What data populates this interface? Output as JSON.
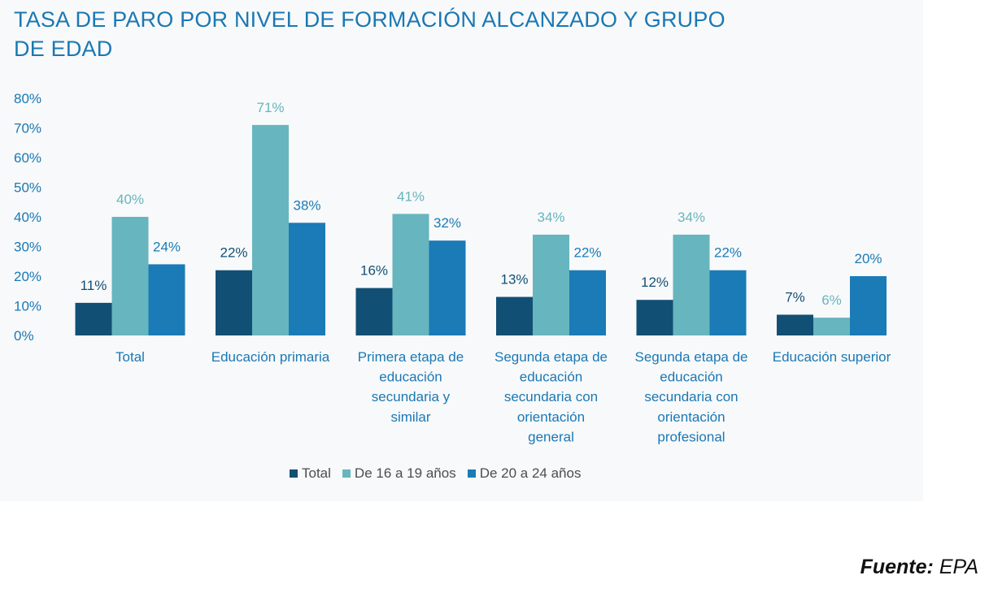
{
  "chart_data": {
    "type": "bar",
    "title": "TASA DE PARO POR NIVEL DE FORMACIÓN ALCANZADO Y GRUPO DE EDAD",
    "categories": [
      [
        "Total"
      ],
      [
        "Educación primaria"
      ],
      [
        "Primera etapa de",
        "educación",
        "secundaria y",
        "similar"
      ],
      [
        "Segunda etapa de",
        "educación",
        "secundaria con",
        "orientación",
        "general"
      ],
      [
        "Segunda etapa de",
        "educación",
        "secundaria con",
        "orientación",
        "profesional"
      ],
      [
        "Educación superior"
      ]
    ],
    "series": [
      {
        "name": "Total",
        "color": "#124f75",
        "label_color": "#124f75",
        "values": [
          11,
          22,
          16,
          13,
          12,
          7
        ],
        "labels": [
          "11%",
          "22%",
          "16%",
          "13%",
          "12%",
          "7%"
        ]
      },
      {
        "name": "De 16 a 19 años",
        "color": "#67b5be",
        "label_color": "#67b5be",
        "values": [
          40,
          71,
          41,
          34,
          34,
          6
        ],
        "labels": [
          "40%",
          "71%",
          "41%",
          "34%",
          "34%",
          "6%"
        ]
      },
      {
        "name": "De 20 a 24 años",
        "color": "#1a7bb6",
        "label_color": "#1a7bb6",
        "values": [
          24,
          38,
          32,
          22,
          22,
          20
        ],
        "labels": [
          "24%",
          "38%",
          "32%",
          "22%",
          "22%",
          "20%"
        ]
      }
    ],
    "ylim": [
      0,
      80
    ],
    "yticks": [
      "0%",
      "10%",
      "20%",
      "30%",
      "40%",
      "50%",
      "60%",
      "70%",
      "80%"
    ],
    "ytick_color": "#1a78b4",
    "xlabel_color": "#1a78b4",
    "grid": false,
    "legend": "bottom-center"
  },
  "source": {
    "prefix": "Fuente:",
    "value": "EPA"
  }
}
